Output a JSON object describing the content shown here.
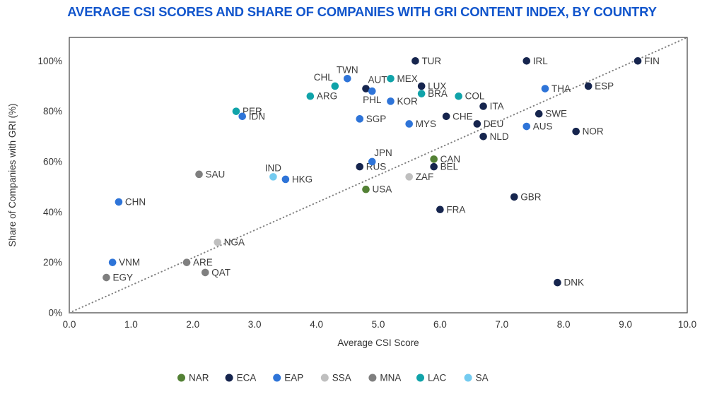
{
  "title": "AVERAGE CSI SCORES AND SHARE OF COMPANIES WITH GRI CONTENT INDEX, BY COUNTRY",
  "colors": {
    "title": "#1155CC",
    "axis_text": "#333333",
    "point_label": "#3D3D3D",
    "plot_border": "#404040",
    "diagonal_line": "#808080"
  },
  "chart_data": {
    "type": "scatter",
    "title": "AVERAGE CSI SCORES AND SHARE OF COMPANIES WITH GRI CONTENT INDEX, BY COUNTRY",
    "xlabel": "Average CSI Score",
    "ylabel": "Share of Companies with GRI (%)",
    "xlim": [
      0,
      10
    ],
    "ylim": [
      0,
      100
    ],
    "x_ticks": [
      "0.0",
      "1.0",
      "2.0",
      "3.0",
      "4.0",
      "5.0",
      "6.0",
      "7.0",
      "8.0",
      "9.0",
      "10.0"
    ],
    "y_ticks": [
      "0%",
      "20%",
      "40%",
      "60%",
      "80%",
      "100%"
    ],
    "grid": false,
    "diagonal_reference_line": true,
    "legend_position": "bottom-center",
    "regions": [
      {
        "code": "NAR",
        "color": "#538135"
      },
      {
        "code": "ECA",
        "color": "#16254E"
      },
      {
        "code": "EAP",
        "color": "#2E74D8"
      },
      {
        "code": "SSA",
        "color": "#BFBFBF"
      },
      {
        "code": "MNA",
        "color": "#7F7F7F"
      },
      {
        "code": "LAC",
        "color": "#10A3A9"
      },
      {
        "code": "SA",
        "color": "#74CBF0"
      }
    ],
    "points": [
      {
        "code": "EGY",
        "region": "MNA",
        "x": 0.6,
        "y": 14,
        "label_pos": "r"
      },
      {
        "code": "VNM",
        "region": "EAP",
        "x": 0.7,
        "y": 20,
        "label_pos": "r"
      },
      {
        "code": "CHN",
        "region": "EAP",
        "x": 0.8,
        "y": 44,
        "label_pos": "r"
      },
      {
        "code": "ARE",
        "region": "MNA",
        "x": 1.9,
        "y": 20,
        "label_pos": "r"
      },
      {
        "code": "SAU",
        "region": "MNA",
        "x": 2.1,
        "y": 55,
        "label_pos": "r"
      },
      {
        "code": "QAT",
        "region": "MNA",
        "x": 2.2,
        "y": 16,
        "label_pos": "r"
      },
      {
        "code": "NGA",
        "region": "SSA",
        "x": 2.4,
        "y": 28,
        "label_pos": "r"
      },
      {
        "code": "PER",
        "region": "LAC",
        "x": 2.7,
        "y": 80,
        "label_pos": "r"
      },
      {
        "code": "IDN",
        "region": "EAP",
        "x": 2.8,
        "y": 78,
        "label_pos": "r"
      },
      {
        "code": "IND",
        "region": "SA",
        "x": 3.3,
        "y": 54,
        "label_pos": "t"
      },
      {
        "code": "HKG",
        "region": "EAP",
        "x": 3.5,
        "y": 53,
        "label_pos": "r"
      },
      {
        "code": "ARG",
        "region": "LAC",
        "x": 3.9,
        "y": 86,
        "label_pos": "r"
      },
      {
        "code": "CHL",
        "region": "LAC",
        "x": 4.3,
        "y": 90,
        "label_pos": "tl"
      },
      {
        "code": "TWN",
        "region": "EAP",
        "x": 4.5,
        "y": 93,
        "label_pos": "t"
      },
      {
        "code": "SGP",
        "region": "EAP",
        "x": 4.7,
        "y": 77,
        "label_pos": "r"
      },
      {
        "code": "RUS",
        "region": "ECA",
        "x": 4.7,
        "y": 58,
        "label_pos": "r"
      },
      {
        "code": "AUT",
        "region": "ECA",
        "x": 4.8,
        "y": 89,
        "label_pos": "tr"
      },
      {
        "code": "USA",
        "region": "NAR",
        "x": 4.8,
        "y": 49,
        "label_pos": "r"
      },
      {
        "code": "PHL",
        "region": "EAP",
        "x": 4.9,
        "y": 88,
        "label_pos": "b"
      },
      {
        "code": "JPN",
        "region": "EAP",
        "x": 4.9,
        "y": 60,
        "label_pos": "tr"
      },
      {
        "code": "MEX",
        "region": "LAC",
        "x": 5.2,
        "y": 93,
        "label_pos": "r"
      },
      {
        "code": "KOR",
        "region": "EAP",
        "x": 5.2,
        "y": 84,
        "label_pos": "r"
      },
      {
        "code": "MYS",
        "region": "EAP",
        "x": 5.5,
        "y": 75,
        "label_pos": "r"
      },
      {
        "code": "ZAF",
        "region": "SSA",
        "x": 5.5,
        "y": 54,
        "label_pos": "r"
      },
      {
        "code": "TUR",
        "region": "ECA",
        "x": 5.6,
        "y": 100,
        "label_pos": "r"
      },
      {
        "code": "LUX",
        "region": "ECA",
        "x": 5.7,
        "y": 90,
        "label_pos": "r"
      },
      {
        "code": "BRA",
        "region": "LAC",
        "x": 5.7,
        "y": 87,
        "label_pos": "r"
      },
      {
        "code": "CAN",
        "region": "NAR",
        "x": 5.9,
        "y": 61,
        "label_pos": "r"
      },
      {
        "code": "BEL",
        "region": "ECA",
        "x": 5.9,
        "y": 58,
        "label_pos": "r"
      },
      {
        "code": "FRA",
        "region": "ECA",
        "x": 6.0,
        "y": 41,
        "label_pos": "r"
      },
      {
        "code": "CHE",
        "region": "ECA",
        "x": 6.1,
        "y": 78,
        "label_pos": "r"
      },
      {
        "code": "COL",
        "region": "LAC",
        "x": 6.3,
        "y": 86,
        "label_pos": "r"
      },
      {
        "code": "DEU",
        "region": "ECA",
        "x": 6.6,
        "y": 75,
        "label_pos": "r"
      },
      {
        "code": "ITA",
        "region": "ECA",
        "x": 6.7,
        "y": 82,
        "label_pos": "r"
      },
      {
        "code": "NLD",
        "region": "ECA",
        "x": 6.7,
        "y": 70,
        "label_pos": "r"
      },
      {
        "code": "GBR",
        "region": "ECA",
        "x": 7.2,
        "y": 46,
        "label_pos": "r"
      },
      {
        "code": "AUS",
        "region": "EAP",
        "x": 7.4,
        "y": 74,
        "label_pos": "r"
      },
      {
        "code": "IRL",
        "region": "ECA",
        "x": 7.4,
        "y": 100,
        "label_pos": "r"
      },
      {
        "code": "SWE",
        "region": "ECA",
        "x": 7.6,
        "y": 79,
        "label_pos": "r"
      },
      {
        "code": "THA",
        "region": "EAP",
        "x": 7.7,
        "y": 89,
        "label_pos": "r"
      },
      {
        "code": "DNK",
        "region": "ECA",
        "x": 7.9,
        "y": 12,
        "label_pos": "r"
      },
      {
        "code": "NOR",
        "region": "ECA",
        "x": 8.2,
        "y": 72,
        "label_pos": "r"
      },
      {
        "code": "ESP",
        "region": "ECA",
        "x": 8.4,
        "y": 90,
        "label_pos": "r"
      },
      {
        "code": "FIN",
        "region": "ECA",
        "x": 9.2,
        "y": 100,
        "label_pos": "r"
      }
    ]
  }
}
